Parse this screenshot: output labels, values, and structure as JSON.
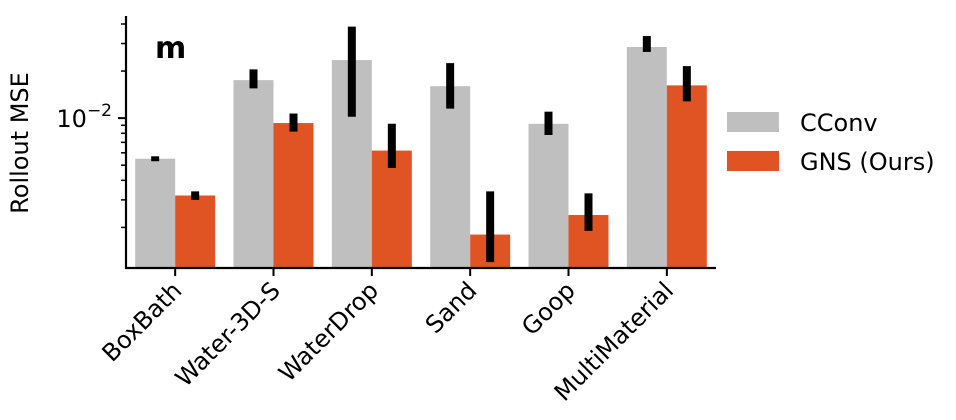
{
  "chart_data": {
    "type": "bar",
    "panel_label": "m",
    "ylabel": "Rollout MSE",
    "yscale": "log",
    "ylim": [
      0.0011,
      0.045
    ],
    "yticks": [
      {
        "value": 0.01,
        "base": "10",
        "exponent": "−2"
      }
    ],
    "categories": [
      "BoxBath",
      "Water-3D-S",
      "WaterDrop",
      "Sand",
      "Goop",
      "MultiMaterial"
    ],
    "series": [
      {
        "name": "CConv",
        "color": "#bfbfbf",
        "values": [
          0.0055,
          0.0175,
          0.0235,
          0.016,
          0.0092,
          0.0285
        ],
        "error_low": [
          0.0053,
          0.0155,
          0.0102,
          0.0115,
          0.0078,
          0.0265
        ],
        "error_high": [
          0.0057,
          0.0205,
          0.0385,
          0.0225,
          0.011,
          0.0335
        ]
      },
      {
        "name": "GNS (Ours)",
        "color": "#e05424",
        "values": [
          0.0032,
          0.0093,
          0.0062,
          0.0018,
          0.0024,
          0.0162
        ],
        "error_low": [
          0.003,
          0.0082,
          0.0048,
          0.0012,
          0.0019,
          0.0128
        ],
        "error_high": [
          0.0034,
          0.0107,
          0.0092,
          0.0034,
          0.0033,
          0.0215
        ]
      }
    ],
    "legend_position": "right"
  }
}
